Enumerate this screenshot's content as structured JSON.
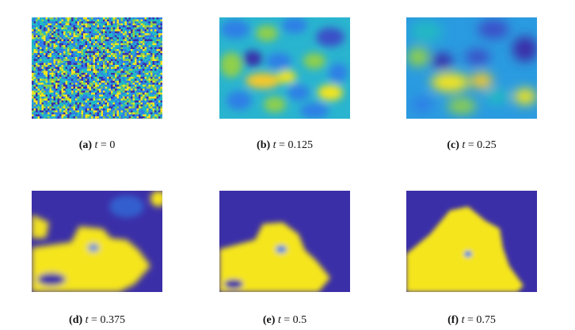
{
  "figure": {
    "panels": [
      {
        "tag": "(a)",
        "var": "t",
        "eq": " = ",
        "value": "0",
        "state": "noise"
      },
      {
        "tag": "(b)",
        "var": "t",
        "eq": " = ",
        "value": "0.125",
        "state": "smoothing"
      },
      {
        "tag": "(c)",
        "var": "t",
        "eq": " = ",
        "value": "0.25",
        "state": "coarsening"
      },
      {
        "tag": "(d)",
        "var": "t",
        "eq": " = ",
        "value": "0.375",
        "state": "separating"
      },
      {
        "tag": "(e)",
        "var": "t",
        "eq": " = ",
        "value": "0.5",
        "state": "separated"
      },
      {
        "tag": "(f)",
        "var": "t",
        "eq": " = ",
        "value": "0.75",
        "state": "single-domain"
      }
    ],
    "colormap": {
      "low": "#3b2fa8",
      "mid_low": "#2f7fe6",
      "mid": "#22b8c4",
      "mid_high": "#8fcf4c",
      "high": "#f5e51f"
    }
  }
}
